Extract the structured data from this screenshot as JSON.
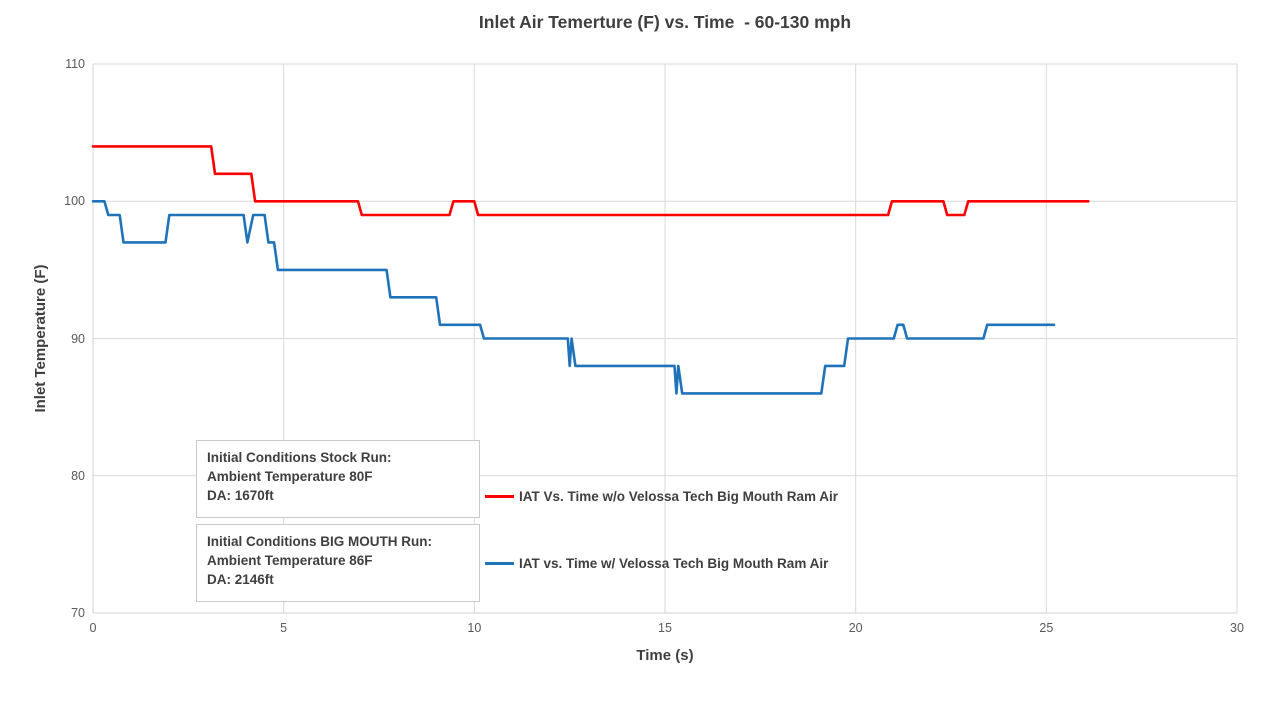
{
  "chart_data": {
    "type": "line",
    "title": "Inlet Air Temerture (F) vs. Time  - 60-130 mph",
    "xlabel": "Time (s)",
    "ylabel": "Inlet Temperature (F)",
    "xlim": [
      0,
      30
    ],
    "ylim": [
      70,
      110
    ],
    "x_ticks": [
      0,
      5,
      10,
      15,
      20,
      25,
      30
    ],
    "y_ticks": [
      70,
      80,
      90,
      100,
      110
    ],
    "grid": true,
    "line_style": "stepped, no markers",
    "legend_position": "middle-right of plot, stacked vertically",
    "colors": {
      "grid": "#d9d9d9",
      "axis": "#d0d0d0",
      "title_text": "#3f3f3f",
      "tick_text": "#595959"
    },
    "series": [
      {
        "id": "iat-without-ram-air",
        "name": "IAT Vs. Time w/o Velossa Tech Big Mouth Ram Air",
        "color": "#fe0000",
        "points": [
          [
            0,
            104
          ],
          [
            3.1,
            104
          ],
          [
            3.2,
            102
          ],
          [
            4.15,
            102
          ],
          [
            4.25,
            100
          ],
          [
            6.95,
            100
          ],
          [
            7.05,
            99
          ],
          [
            9.35,
            99
          ],
          [
            9.45,
            100
          ],
          [
            10.0,
            100
          ],
          [
            10.1,
            99
          ],
          [
            20.85,
            99
          ],
          [
            20.95,
            100
          ],
          [
            22.3,
            100
          ],
          [
            22.4,
            99
          ],
          [
            22.85,
            99
          ],
          [
            22.95,
            100
          ],
          [
            26.1,
            100
          ]
        ]
      },
      {
        "id": "iat-with-ram-air",
        "name": "IAT vs. Time w/ Velossa Tech Big Mouth Ram Air",
        "color": "#1e73ba",
        "points": [
          [
            0,
            100
          ],
          [
            0.3,
            100
          ],
          [
            0.4,
            99
          ],
          [
            0.7,
            99
          ],
          [
            0.8,
            97
          ],
          [
            1.9,
            97
          ],
          [
            2.0,
            99
          ],
          [
            3.95,
            99
          ],
          [
            4.05,
            97
          ],
          [
            4.2,
            99
          ],
          [
            4.5,
            99
          ],
          [
            4.6,
            97
          ],
          [
            4.75,
            97
          ],
          [
            4.85,
            95
          ],
          [
            7.7,
            95
          ],
          [
            7.8,
            93
          ],
          [
            9.0,
            93
          ],
          [
            9.1,
            91
          ],
          [
            10.15,
            91
          ],
          [
            10.25,
            90
          ],
          [
            12.45,
            90
          ],
          [
            12.5,
            88
          ],
          [
            12.55,
            90
          ],
          [
            12.65,
            88
          ],
          [
            15.25,
            88
          ],
          [
            15.3,
            86
          ],
          [
            15.35,
            88
          ],
          [
            15.45,
            86
          ],
          [
            19.1,
            86
          ],
          [
            19.2,
            88
          ],
          [
            19.7,
            88
          ],
          [
            19.8,
            90
          ],
          [
            21.0,
            90
          ],
          [
            21.1,
            91
          ],
          [
            21.25,
            91
          ],
          [
            21.35,
            90
          ],
          [
            23.35,
            90
          ],
          [
            23.45,
            91
          ],
          [
            25.2,
            91
          ]
        ]
      }
    ],
    "annotations": [
      {
        "lines": [
          "Initial Conditions Stock Run:",
          "Ambient Temperature 80F",
          "DA: 1670ft"
        ]
      },
      {
        "lines": [
          "Initial Conditions BIG MOUTH Run:",
          "Ambient Temperature 86F",
          "DA: 2146ft"
        ]
      }
    ]
  }
}
